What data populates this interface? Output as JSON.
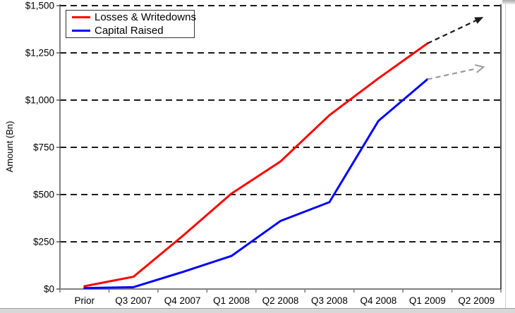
{
  "page": {
    "background": "#ffffff"
  },
  "chart_data": {
    "type": "line",
    "title": "",
    "xlabel": "",
    "ylabel": "Amount (Bn)",
    "categories": [
      "Prior",
      "Q3 2007",
      "Q4 2007",
      "Q1 2008",
      "Q2 2008",
      "Q3 2008",
      "Q4 2008",
      "Q1 2009",
      "Q2 2009"
    ],
    "series": [
      {
        "name": "Losses & Writedowns",
        "color": "#ff0000",
        "values": [
          15,
          65,
          280,
          505,
          675,
          920,
          1115,
          1300
        ]
      },
      {
        "name": "Capital Raised",
        "color": "#0000ff",
        "values": [
          5,
          10,
          90,
          175,
          360,
          460,
          890,
          1110
        ]
      }
    ],
    "projection_arrows": [
      {
        "for_series": "Losses & Writedowns",
        "color": "#1a1a1a",
        "style": "dashed",
        "head": "filled",
        "to_value": 1440
      },
      {
        "for_series": "Capital Raised",
        "color": "#9a9a9a",
        "style": "dashed",
        "head": "open",
        "to_value": 1175
      }
    ],
    "ylim": [
      0,
      1500
    ],
    "ytick_values": [
      0,
      250,
      500,
      750,
      1000,
      1250,
      1500
    ],
    "ytick_labels": [
      "$0",
      "$250",
      "$500",
      "$750",
      "$1,000",
      "$1,250",
      "$1,500"
    ],
    "grid": "horizontal-dashed",
    "grid_color": "#1a1a1a",
    "axis_color": "#808080",
    "legend_position": "top-left"
  }
}
